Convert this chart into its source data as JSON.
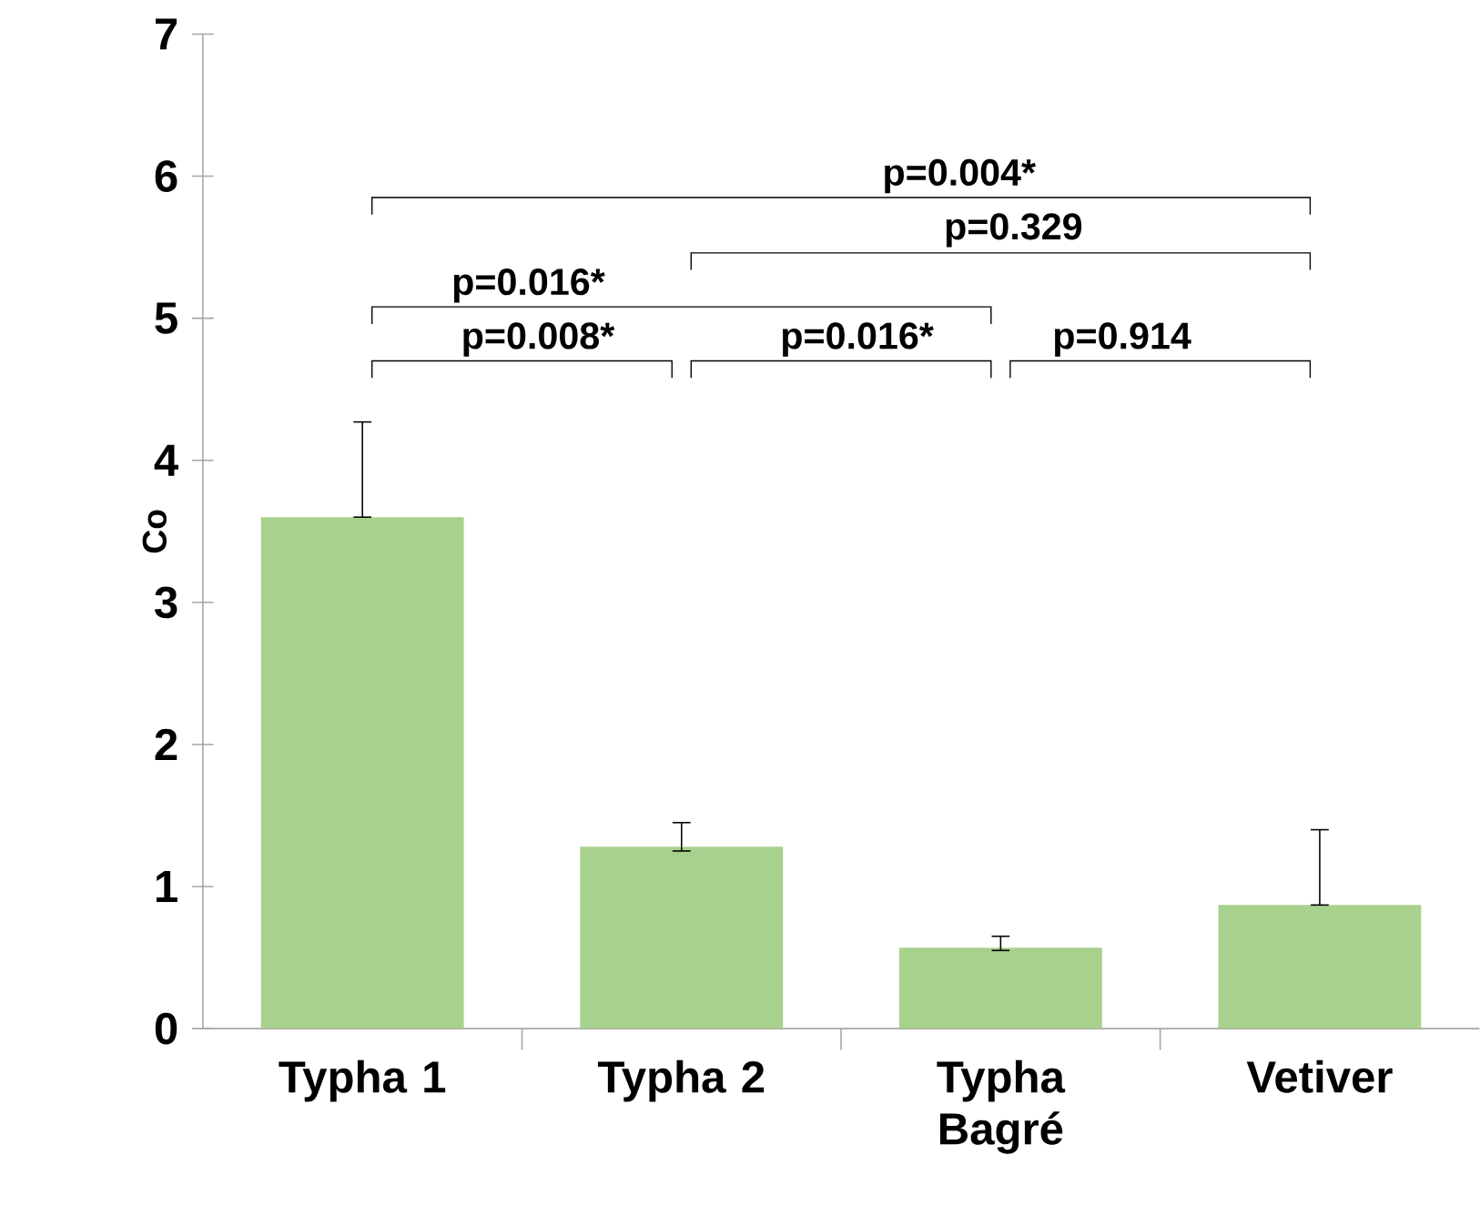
{
  "chart_data": {
    "type": "bar",
    "ylabel": "Co",
    "categories": [
      "Typha 1",
      "Typha 2",
      "Typha Bagré",
      "Vetiver"
    ],
    "values": [
      3.6,
      1.28,
      0.57,
      0.87
    ],
    "errors": [
      [
        3.6,
        4.27
      ],
      [
        1.25,
        1.45
      ],
      [
        0.55,
        0.65
      ],
      [
        0.87,
        1.4
      ]
    ],
    "color": "#a9d18e",
    "ylim": [
      0,
      7
    ],
    "yticks": [
      0,
      1,
      2,
      3,
      4,
      5,
      6,
      7
    ],
    "grid": false,
    "annotations": [
      "p=0.004*",
      "p=0.329",
      "p=0.016*",
      "p=0.008*",
      "p=0.016*",
      "p=0.914"
    ]
  }
}
